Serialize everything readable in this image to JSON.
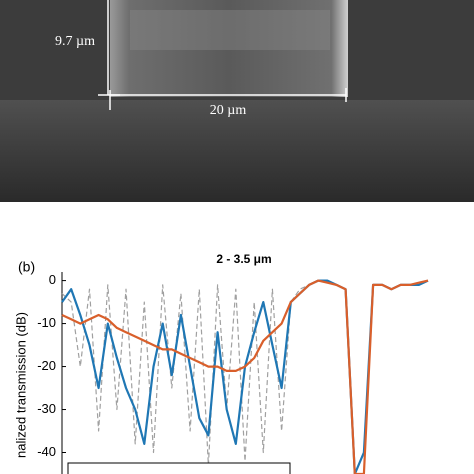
{
  "image": {
    "labels": [
      "9.7 µm",
      "20 µm"
    ]
  },
  "panel_label": "(b)",
  "chart_data": {
    "type": "line",
    "title": "2 - 3.5 μm",
    "y_label": "nalized transmission (dB)",
    "categories": [
      null,
      null,
      null,
      null,
      null,
      null,
      null,
      null,
      null,
      null,
      null,
      null,
      null,
      null,
      null,
      null,
      null,
      null,
      null,
      null,
      null,
      null,
      null,
      null,
      null,
      null,
      null,
      null,
      null,
      null,
      null,
      null,
      null,
      null,
      null,
      null,
      null,
      null,
      null,
      null,
      null
    ],
    "series": [
      {
        "color": "#a0a0a0",
        "dashed": true,
        "values": [
          -3,
          -5,
          -20,
          -2,
          -35,
          -1,
          -30,
          -2,
          -38,
          -5,
          -40,
          -1,
          -25,
          -3,
          -35,
          -2,
          -43,
          -1,
          -30,
          -2,
          -42,
          -5,
          -40,
          -2,
          -35,
          -5,
          -2,
          -1,
          null,
          null,
          null,
          null,
          null,
          null,
          null,
          null,
          null,
          null,
          null,
          null,
          null
        ]
      },
      {
        "color": "#1f77b4",
        "values": [
          -5,
          -2,
          -8,
          -15,
          -25,
          -10,
          -18,
          -25,
          -30,
          -38,
          -20,
          -10,
          -22,
          -8,
          -20,
          -32,
          -36,
          -12,
          -30,
          -38,
          -20,
          -12,
          -5,
          -15,
          -25,
          -5,
          -3,
          -1,
          0,
          0,
          -1,
          -2,
          -45,
          -40,
          -1,
          -1,
          -2,
          -1,
          -1,
          -1,
          0
        ]
      },
      {
        "color": "#d95f2b",
        "values": [
          -8,
          -9,
          -10,
          -9,
          -8,
          -9,
          -11,
          -12,
          -13,
          -14,
          -15,
          -16,
          -16,
          -17,
          -18,
          -19,
          -20,
          -20,
          -21,
          -21,
          -20,
          -18,
          -14,
          -12,
          -10,
          -5,
          -3,
          -1,
          0,
          -0.5,
          -1,
          -2,
          -45,
          -45,
          -1,
          -1,
          -2,
          -1,
          -1,
          -0.5,
          0
        ]
      }
    ],
    "ylim": [
      -45,
      2
    ],
    "yticks": [
      0,
      -10,
      -20,
      -30,
      -40
    ]
  }
}
